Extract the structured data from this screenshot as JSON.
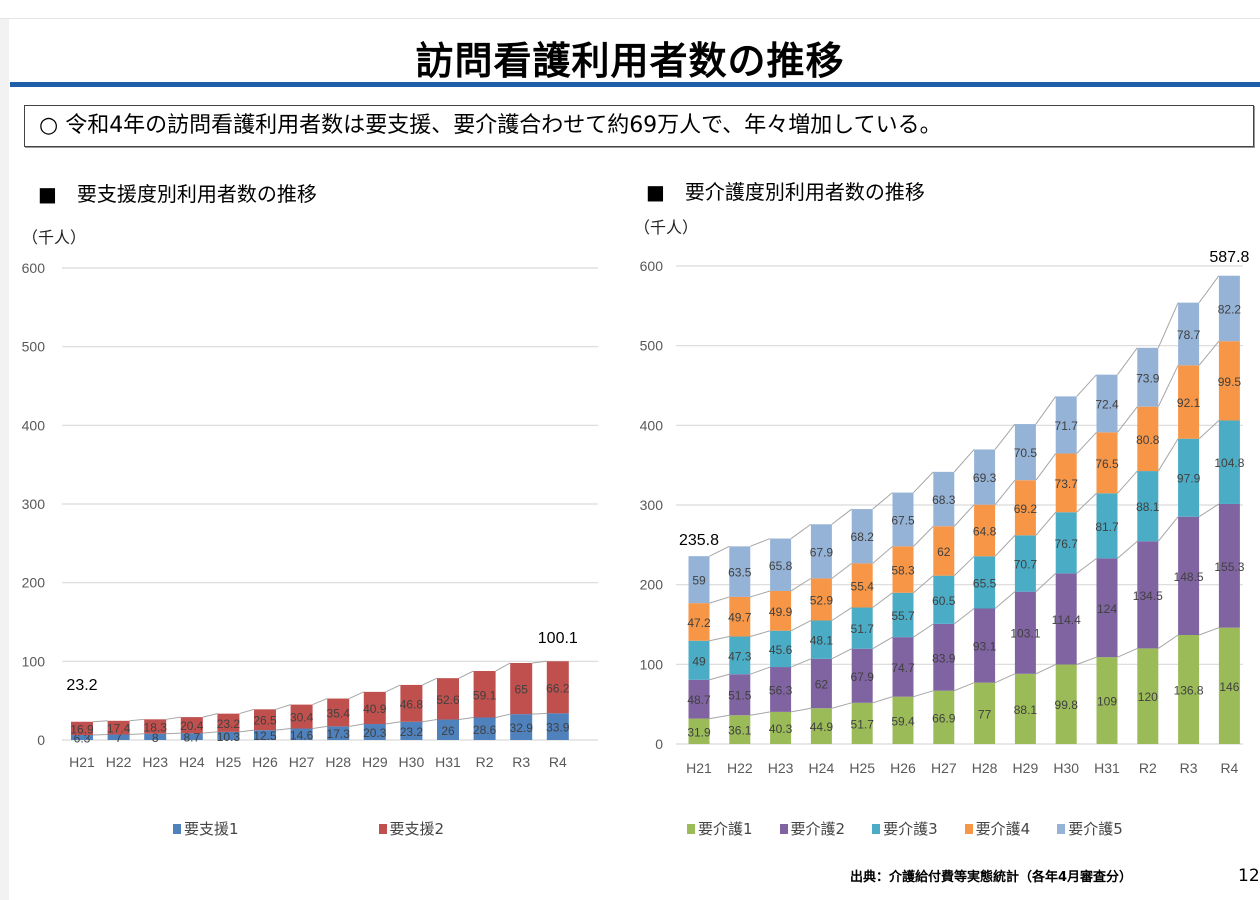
{
  "header": {
    "title": "訪問看護利用者数の推移",
    "summary": "○  令和4年の訪問看護利用者数は要支援、要介護合わせて約69万人で、年々増加している。"
  },
  "left_section": {
    "title": "■　要支援度別利用者数の推移",
    "unit": "（千人）"
  },
  "right_section": {
    "title": "■　要介護度別利用者数の推移",
    "unit": "（千人）"
  },
  "footer": {
    "source": "出典：介護給付費等実態統計（各年4月審査分）",
    "page_number": "12"
  },
  "chart_data": [
    {
      "type": "bar",
      "stacked": true,
      "title": "要支援度別利用者数の推移",
      "ylabel": "（千人）",
      "xlabel": "",
      "ylim": [
        0,
        600
      ],
      "yticks": [
        0,
        100,
        200,
        300,
        400,
        500,
        600
      ],
      "grid": true,
      "legend_position": "bottom",
      "categories": [
        "H21",
        "H22",
        "H23",
        "H24",
        "H25",
        "H26",
        "H27",
        "H28",
        "H29",
        "H30",
        "H31",
        "R2",
        "R3",
        "R4"
      ],
      "series": [
        {
          "name": "要支援1",
          "color": "#4f81bd",
          "values": [
            6.3,
            7,
            8,
            8.7,
            10.3,
            12.5,
            14.6,
            17.3,
            20.3,
            23.2,
            26,
            28.6,
            32.9,
            33.9
          ]
        },
        {
          "name": "要支援2",
          "color": "#c0504d",
          "values": [
            16.9,
            17.4,
            18.3,
            20.4,
            23.2,
            26.5,
            30.4,
            35.4,
            40.9,
            46.8,
            52.6,
            59.1,
            65,
            66.2
          ]
        }
      ],
      "total_labels": [
        {
          "category": "H21",
          "value": "23.2"
        },
        {
          "category": "R4",
          "value": "100.1"
        }
      ]
    },
    {
      "type": "bar",
      "stacked": true,
      "title": "要介護度別利用者数の推移",
      "ylabel": "（千人）",
      "xlabel": "",
      "ylim": [
        0,
        600
      ],
      "yticks": [
        0,
        100,
        200,
        300,
        400,
        500,
        600
      ],
      "grid": true,
      "legend_position": "bottom",
      "categories": [
        "H21",
        "H22",
        "H23",
        "H24",
        "H25",
        "H26",
        "H27",
        "H28",
        "H29",
        "H30",
        "H31",
        "R2",
        "R3",
        "R4"
      ],
      "series": [
        {
          "name": "要介護1",
          "color": "#9bbb59",
          "values": [
            31.9,
            36.1,
            40.3,
            44.9,
            51.7,
            59.4,
            66.9,
            77,
            88.1,
            99.8,
            109,
            120,
            136.8,
            146
          ]
        },
        {
          "name": "要介護2",
          "color": "#8064a2",
          "values": [
            48.7,
            51.5,
            56.3,
            62,
            67.9,
            74.7,
            83.9,
            93.1,
            103.1,
            114.4,
            124,
            134.5,
            148.5,
            155.3
          ]
        },
        {
          "name": "要介護3",
          "color": "#4bacc6",
          "values": [
            49,
            47.3,
            45.6,
            48.1,
            51.7,
            55.7,
            60.5,
            65.5,
            70.7,
            76.7,
            81.7,
            88.1,
            97.9,
            104.8
          ]
        },
        {
          "name": "要介護4",
          "color": "#f79646",
          "values": [
            47.2,
            49.7,
            49.9,
            52.9,
            55.4,
            58.3,
            62,
            64.8,
            69.2,
            73.7,
            76.5,
            80.8,
            92.1,
            99.5
          ]
        },
        {
          "name": "要介護5",
          "color": "#95b3d7",
          "values": [
            59,
            63.5,
            65.8,
            67.9,
            68.2,
            67.5,
            68.3,
            69.3,
            70.5,
            71.7,
            72.4,
            73.9,
            78.7,
            82.2
          ]
        }
      ],
      "total_labels": [
        {
          "category": "H21",
          "value": "235.8"
        },
        {
          "category": "R4",
          "value": "587.8"
        }
      ]
    }
  ]
}
